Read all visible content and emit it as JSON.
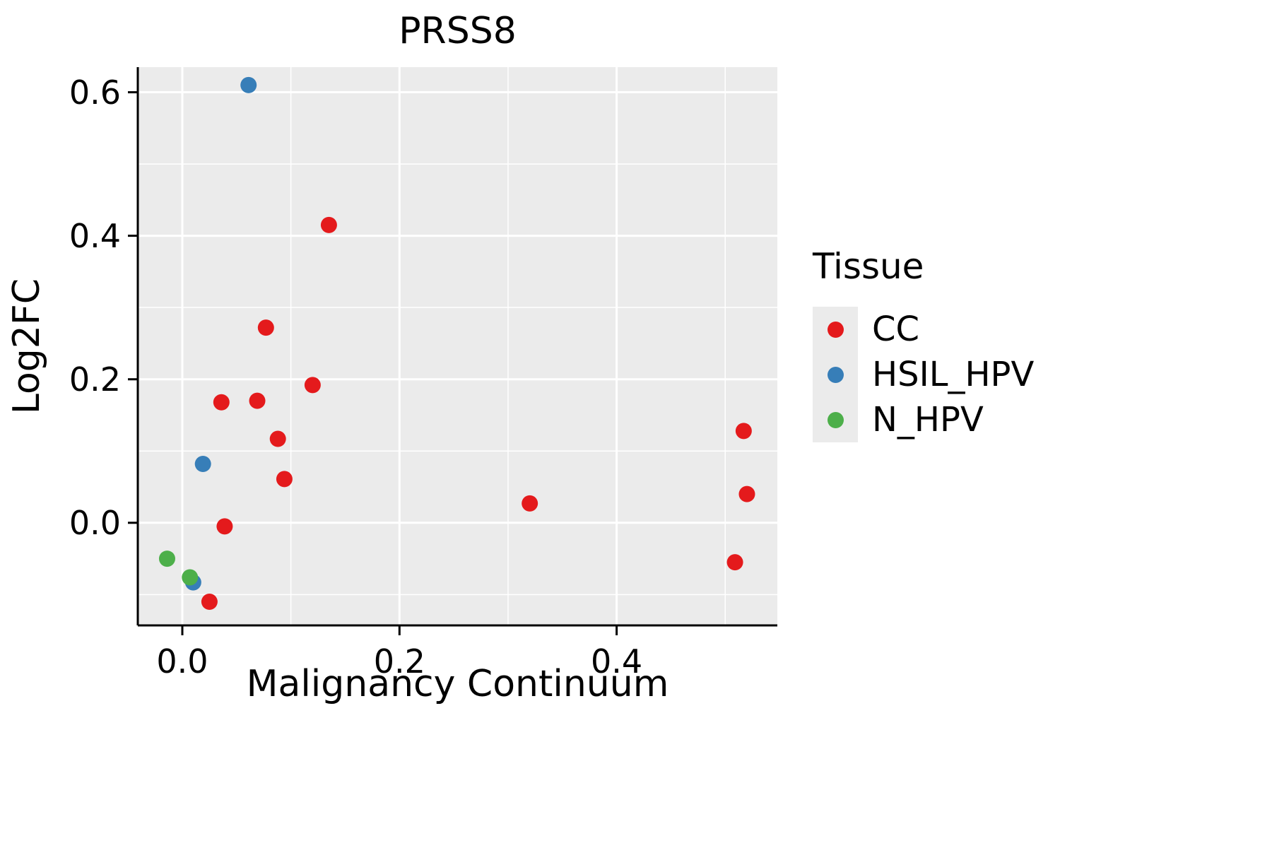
{
  "title": "PRSS8",
  "chart_data": {
    "type": "scatter",
    "title": "PRSS8",
    "xlabel": "Malignancy Continuum",
    "ylabel": "Log2FC",
    "xlim": [
      -0.041,
      0.548
    ],
    "ylim": [
      -0.143,
      0.635
    ],
    "x_ticks": [
      0.0,
      0.2,
      0.4
    ],
    "x_tick_labels": [
      "0.0",
      "0.2",
      "0.4"
    ],
    "y_ticks": [
      0.0,
      0.2,
      0.4,
      0.6
    ],
    "y_tick_labels": [
      "0.0",
      "0.2",
      "0.4",
      "0.6"
    ],
    "x_minor_gridlines": [
      0.1,
      0.3,
      0.5
    ],
    "y_minor_gridlines": [
      -0.1,
      0.1,
      0.3,
      0.5
    ],
    "grid": true,
    "panel_background": "#EBEBEB",
    "grid_color": "#FFFFFF",
    "axis_color": "#000000",
    "legend_position": "right",
    "legend_title": "Tissue",
    "point_radius": 11.5,
    "series": [
      {
        "name": "CC",
        "color": "#E41A1C",
        "points": [
          [
            0.135,
            0.415
          ],
          [
            0.077,
            0.272
          ],
          [
            0.12,
            0.192
          ],
          [
            0.036,
            0.168
          ],
          [
            0.069,
            0.17
          ],
          [
            0.088,
            0.117
          ],
          [
            0.094,
            0.061
          ],
          [
            0.517,
            0.128
          ],
          [
            0.52,
            0.04
          ],
          [
            0.32,
            0.027
          ],
          [
            0.039,
            -0.005
          ],
          [
            0.509,
            -0.055
          ],
          [
            0.025,
            -0.11
          ]
        ]
      },
      {
        "name": "HSIL_HPV",
        "color": "#377EB8",
        "points": [
          [
            0.061,
            0.61
          ],
          [
            0.019,
            0.082
          ],
          [
            0.01,
            -0.083
          ]
        ]
      },
      {
        "name": "N_HPV",
        "color": "#4DAF4A",
        "points": [
          [
            -0.014,
            -0.05
          ],
          [
            0.007,
            -0.076
          ]
        ]
      }
    ]
  }
}
